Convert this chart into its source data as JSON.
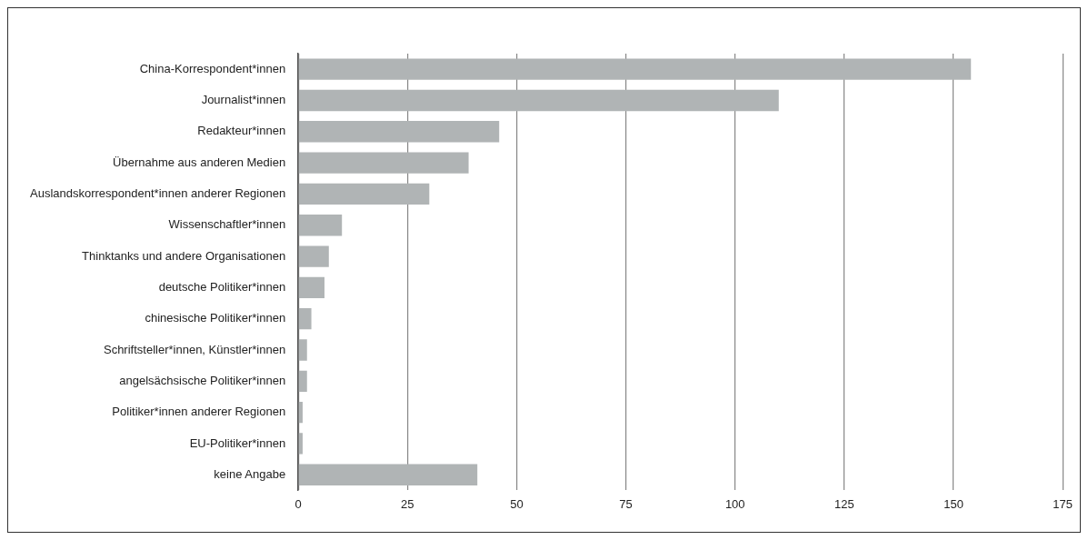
{
  "chart_data": {
    "type": "bar",
    "orientation": "horizontal",
    "categories": [
      "China-Korrespondent*innen",
      "Journalist*innen",
      "Redakteur*innen",
      "Übernahme aus anderen Medien",
      "Auslandskorrespondent*innen anderer Regionen",
      "Wissenschaftler*innen",
      "Thinktanks und andere Organisationen",
      "deutsche Politiker*innen",
      "chinesische Politiker*innen",
      "Schriftsteller*innen, Künstler*innen",
      "angelsächsische Politiker*innen",
      "Politiker*innen anderer Regionen",
      "EU-Politiker*innen",
      "keine Angabe"
    ],
    "values": [
      154,
      110,
      46,
      39,
      30,
      10,
      7,
      6,
      3,
      2,
      2,
      1,
      1,
      41
    ],
    "color": "#b0b4b5",
    "xlim": [
      0,
      175
    ],
    "xticks": [
      0,
      25,
      50,
      75,
      100,
      125,
      150,
      175
    ],
    "grid": "x",
    "legend": false
  }
}
